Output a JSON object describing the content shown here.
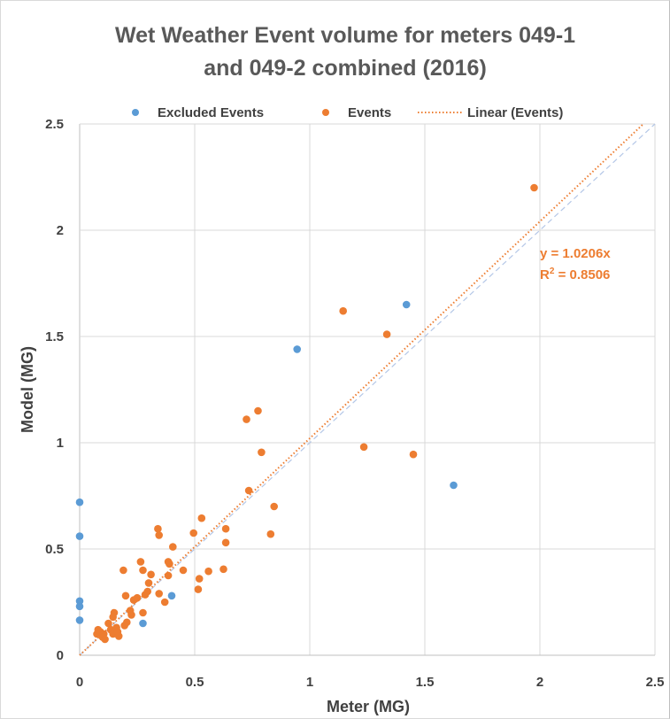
{
  "chart_data": {
    "type": "scatter",
    "title_lines": [
      "Wet Weather Event volume for meters 049-1",
      "and 049-2 combined (2016)"
    ],
    "xlabel": "Meter (MG)",
    "ylabel": "Model (MG)",
    "xlim": [
      0,
      2.5
    ],
    "ylim": [
      0,
      2.5
    ],
    "x_ticks": [
      "0",
      "0.5",
      "1",
      "1.5",
      "2",
      "2.5"
    ],
    "y_ticks": [
      "0",
      "0.5",
      "1",
      "1.5",
      "2",
      "2.5"
    ],
    "grid": true,
    "legend_position": "top",
    "series": [
      {
        "name": "Excluded Events",
        "color": "#5b9bd5",
        "marker": "circle",
        "points": [
          [
            0,
            0.72
          ],
          [
            0,
            0.56
          ],
          [
            0,
            0.255
          ],
          [
            0,
            0.23
          ],
          [
            0,
            0.165
          ],
          [
            0.275,
            0.15
          ],
          [
            0.4,
            0.28
          ],
          [
            0.945,
            1.44
          ],
          [
            1.42,
            1.65
          ],
          [
            1.625,
            0.8
          ]
        ]
      },
      {
        "name": "Events",
        "color": "#ed7d31",
        "marker": "circle",
        "points": [
          [
            1.975,
            2.2
          ],
          [
            1.145,
            1.62
          ],
          [
            1.335,
            1.51
          ],
          [
            0.775,
            1.15
          ],
          [
            0.725,
            1.11
          ],
          [
            0.79,
            0.955
          ],
          [
            1.235,
            0.98
          ],
          [
            1.45,
            0.945
          ],
          [
            0.735,
            0.775
          ],
          [
            0.845,
            0.7
          ],
          [
            0.83,
            0.57
          ],
          [
            0.53,
            0.645
          ],
          [
            0.635,
            0.595
          ],
          [
            0.635,
            0.53
          ],
          [
            0.34,
            0.595
          ],
          [
            0.345,
            0.565
          ],
          [
            0.495,
            0.575
          ],
          [
            0.405,
            0.51
          ],
          [
            0.52,
            0.36
          ],
          [
            0.515,
            0.31
          ],
          [
            0.56,
            0.395
          ],
          [
            0.625,
            0.405
          ],
          [
            0.265,
            0.44
          ],
          [
            0.275,
            0.4
          ],
          [
            0.385,
            0.44
          ],
          [
            0.39,
            0.43
          ],
          [
            0.385,
            0.375
          ],
          [
            0.45,
            0.4
          ],
          [
            0.31,
            0.38
          ],
          [
            0.19,
            0.4
          ],
          [
            0.345,
            0.29
          ],
          [
            0.37,
            0.25
          ],
          [
            0.3,
            0.34
          ],
          [
            0.295,
            0.3
          ],
          [
            0.285,
            0.285
          ],
          [
            0.275,
            0.2
          ],
          [
            0.2,
            0.28
          ],
          [
            0.235,
            0.26
          ],
          [
            0.25,
            0.27
          ],
          [
            0.22,
            0.21
          ],
          [
            0.225,
            0.19
          ],
          [
            0.205,
            0.155
          ],
          [
            0.195,
            0.14
          ],
          [
            0.15,
            0.2
          ],
          [
            0.145,
            0.18
          ],
          [
            0.125,
            0.15
          ],
          [
            0.135,
            0.12
          ],
          [
            0.145,
            0.1
          ],
          [
            0.16,
            0.13
          ],
          [
            0.165,
            0.11
          ],
          [
            0.17,
            0.09
          ],
          [
            0.105,
            0.1
          ],
          [
            0.09,
            0.11
          ],
          [
            0.075,
            0.1
          ],
          [
            0.08,
            0.12
          ],
          [
            0.1,
            0.085
          ],
          [
            0.11,
            0.075
          ]
        ]
      }
    ],
    "trendline": {
      "name": "Linear (Events)",
      "color": "#ed7d31",
      "style": "dotted",
      "slope": 1.0206,
      "equation": "y = 1.0206x",
      "r2_prefix": "R",
      "r2_exp": "2",
      "r2_suffix": " = 0.8506"
    },
    "reference_line": {
      "color": "#b4c7e7",
      "style": "dashed",
      "slope": 1
    }
  }
}
